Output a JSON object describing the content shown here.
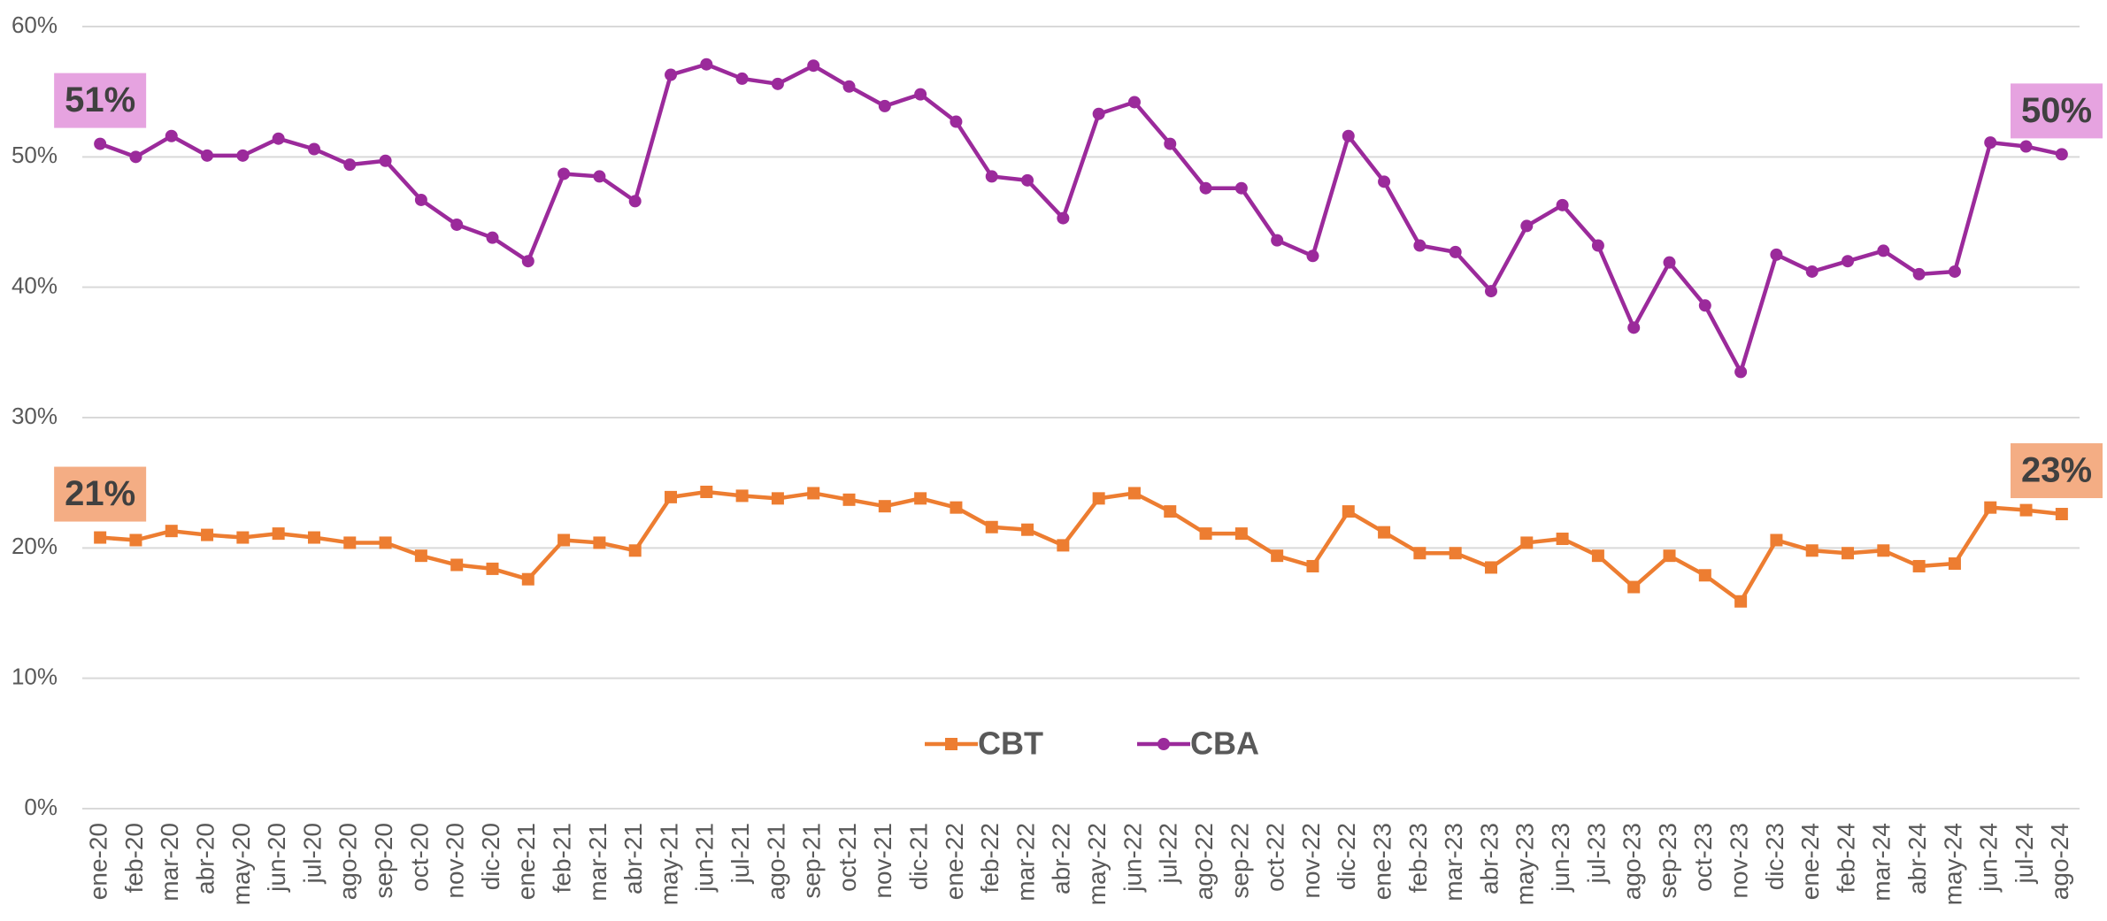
{
  "chart_data": {
    "type": "line",
    "categories": [
      "ene-20",
      "feb-20",
      "mar-20",
      "abr-20",
      "may-20",
      "jun-20",
      "jul-20",
      "ago-20",
      "sep-20",
      "oct-20",
      "nov-20",
      "dic-20",
      "ene-21",
      "feb-21",
      "mar-21",
      "abr-21",
      "may-21",
      "jun-21",
      "jul-21",
      "ago-21",
      "sep-21",
      "oct-21",
      "nov-21",
      "dic-21",
      "ene-22",
      "feb-22",
      "mar-22",
      "abr-22",
      "may-22",
      "jun-22",
      "jul-22",
      "ago-22",
      "sep-22",
      "oct-22",
      "nov-22",
      "dic-22",
      "ene-23",
      "feb-23",
      "mar-23",
      "abr-23",
      "may-23",
      "jun-23",
      "jul-23",
      "ago-23",
      "sep-23",
      "oct-23",
      "nov-23",
      "dic-23",
      "ene-24",
      "feb-24",
      "mar-24",
      "abr-24",
      "may-24",
      "jun-24",
      "jul-24",
      "ago-24"
    ],
    "series": [
      {
        "name": "CBT",
        "color": "#ed7d31",
        "marker": "square",
        "label_color": "#f4ad84",
        "values": [
          20.8,
          20.6,
          21.3,
          21.0,
          20.8,
          21.1,
          20.8,
          20.4,
          20.4,
          19.4,
          18.7,
          18.4,
          17.6,
          20.6,
          20.4,
          19.8,
          23.9,
          24.3,
          24.0,
          23.8,
          24.2,
          23.7,
          23.2,
          23.8,
          23.1,
          21.6,
          21.4,
          20.2,
          23.8,
          24.2,
          22.8,
          21.1,
          21.1,
          19.4,
          18.6,
          22.8,
          21.2,
          19.6,
          19.6,
          18.5,
          20.4,
          20.7,
          19.4,
          17.0,
          19.4,
          17.9,
          15.9,
          20.6,
          19.8,
          19.6,
          19.8,
          18.6,
          18.8,
          23.1,
          22.9,
          22.6
        ],
        "value_labels": [
          "21%",
          null,
          null,
          null,
          null,
          null,
          null,
          null,
          null,
          null,
          null,
          null,
          null,
          null,
          null,
          null,
          null,
          null,
          null,
          null,
          null,
          null,
          null,
          null,
          null,
          null,
          null,
          null,
          null,
          null,
          null,
          null,
          null,
          null,
          null,
          null,
          null,
          null,
          null,
          null,
          null,
          null,
          null,
          null,
          null,
          null,
          null,
          null,
          null,
          null,
          null,
          null,
          null,
          null,
          null,
          "23%"
        ]
      },
      {
        "name": "CBA",
        "color": "#9b2a9b",
        "marker": "circle",
        "label_color": "#e6a3e0",
        "values": [
          51.0,
          50.0,
          51.6,
          50.1,
          50.1,
          51.4,
          50.6,
          49.4,
          49.7,
          46.7,
          44.8,
          43.8,
          42.0,
          48.7,
          48.5,
          46.6,
          56.3,
          57.1,
          56.0,
          55.6,
          57.0,
          55.4,
          53.9,
          54.8,
          52.7,
          48.5,
          48.2,
          45.3,
          53.3,
          54.2,
          51.0,
          47.6,
          47.6,
          43.6,
          42.4,
          51.6,
          48.1,
          43.2,
          42.7,
          39.7,
          44.7,
          46.3,
          43.2,
          36.9,
          41.9,
          38.6,
          33.5,
          42.5,
          41.2,
          42.0,
          42.8,
          41.0,
          41.2,
          51.1,
          50.8,
          50.2
        ],
        "value_labels": [
          "51%",
          null,
          null,
          null,
          null,
          null,
          null,
          null,
          null,
          null,
          null,
          null,
          null,
          null,
          null,
          null,
          null,
          null,
          null,
          null,
          null,
          null,
          null,
          null,
          null,
          null,
          null,
          null,
          null,
          null,
          null,
          null,
          null,
          null,
          null,
          null,
          null,
          null,
          null,
          null,
          null,
          null,
          null,
          null,
          null,
          null,
          null,
          null,
          null,
          null,
          null,
          null,
          null,
          null,
          null,
          "50%"
        ]
      }
    ],
    "ylim": [
      0,
      60
    ],
    "yticks": [
      {
        "value": 0,
        "label": "0%"
      },
      {
        "value": 10,
        "label": "10%"
      },
      {
        "value": 20,
        "label": "20%"
      },
      {
        "value": 30,
        "label": "30%"
      },
      {
        "value": 40,
        "label": "40%"
      },
      {
        "value": 50,
        "label": "50%"
      },
      {
        "value": 60,
        "label": "60%"
      }
    ],
    "grid": true,
    "legend": "center"
  }
}
